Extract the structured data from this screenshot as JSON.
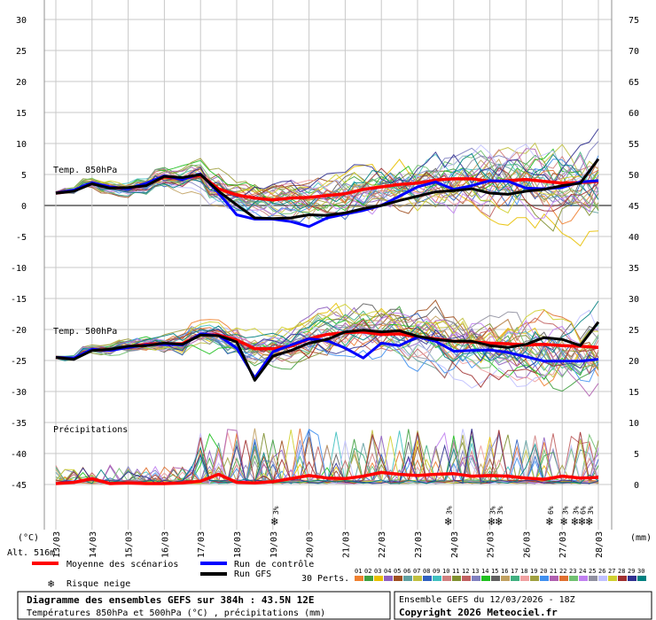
{
  "chart_data": {
    "type": "line",
    "left_axis_label": "(°C)",
    "right_axis_label": "(mm)",
    "altitude_label": "Alt. 516m",
    "y_left_ticks": [
      30,
      25,
      20,
      15,
      10,
      5,
      0,
      -5,
      -10,
      -15,
      -20,
      -25,
      -30,
      -35,
      -40,
      -45
    ],
    "y_right_ticks": [
      75,
      70,
      65,
      60,
      55,
      50,
      45,
      40,
      35,
      30,
      25,
      20,
      15,
      10,
      5,
      0
    ],
    "ylim": [
      -45,
      30
    ],
    "x_dates": [
      "13/03",
      "14/03",
      "15/03",
      "16/03",
      "17/03",
      "18/03",
      "19/03",
      "20/03",
      "21/03",
      "22/03",
      "23/03",
      "24/03",
      "25/03",
      "26/03",
      "27/03",
      "28/03"
    ],
    "section_labels": {
      "t850": "Temp. 850hPa",
      "t500": "Temp. 500hPa",
      "precip": "Précipitations"
    },
    "snow_markers": [
      {
        "day": 6.1,
        "pct": "3%"
      },
      {
        "day": 10.9,
        "pct": "3%"
      },
      {
        "day": 12.1,
        "pct": "3%"
      },
      {
        "day": 12.3,
        "pct": "3%"
      },
      {
        "day": 13.7,
        "pct": "6%"
      },
      {
        "day": 14.1,
        "pct": "3%"
      },
      {
        "day": 14.4,
        "pct": "3%"
      },
      {
        "day": 14.6,
        "pct": "6%"
      },
      {
        "day": 14.8,
        "pct": "3%"
      }
    ],
    "series": [
      {
        "name": "Moyenne des scénarios",
        "group": "t850",
        "x": [
          0,
          0.5,
          1,
          1.5,
          2,
          2.5,
          3,
          3.5,
          4,
          4.5,
          5,
          5.5,
          6,
          6.5,
          7,
          7.5,
          8,
          8.5,
          9,
          9.5,
          10,
          10.5,
          11,
          11.5,
          12,
          12.5,
          13,
          13.5,
          14,
          14.5,
          15
        ],
        "values": [
          2,
          2.4,
          3.6,
          2.9,
          2.8,
          3.3,
          4.6,
          4.3,
          4.9,
          2.7,
          1.7,
          1.2,
          0.9,
          1.2,
          1.3,
          1.6,
          1.9,
          2.6,
          3.0,
          3.4,
          3.6,
          4.1,
          4.3,
          4.3,
          3.9,
          4.0,
          4.2,
          3.9,
          3.6,
          3.7,
          3.9
        ]
      },
      {
        "name": "Run de contrôle",
        "group": "t850",
        "x": [
          0,
          0.5,
          1,
          1.5,
          2,
          2.5,
          3,
          3.5,
          4,
          4.5,
          5,
          5.5,
          6,
          6.5,
          7,
          7.5,
          8,
          8.5,
          9,
          9.5,
          10,
          10.5,
          11,
          11.5,
          12,
          12.5,
          13,
          13.5,
          14,
          14.5,
          15
        ],
        "values": [
          2,
          2.5,
          3.7,
          3.0,
          2.7,
          3.6,
          4.8,
          4.2,
          5.1,
          2.0,
          -1.5,
          -2.2,
          -2.2,
          -2.6,
          -3.4,
          -2.0,
          -1.4,
          -0.8,
          0,
          1.5,
          3.0,
          3.8,
          2.6,
          3.2,
          4.0,
          3.9,
          2.8,
          2.7,
          2.9,
          3.8,
          4.0
        ]
      },
      {
        "name": "Run GFS",
        "group": "t850",
        "x": [
          0,
          0.5,
          1,
          1.5,
          2,
          2.5,
          3,
          3.5,
          4,
          4.5,
          5,
          5.5,
          6,
          6.5,
          7,
          7.5,
          8,
          8.5,
          9,
          9.5,
          10,
          10.5,
          11,
          11.5,
          12,
          12.5,
          13,
          13.5,
          14,
          14.5,
          15
        ],
        "values": [
          2,
          2.3,
          3.5,
          2.8,
          2.9,
          3.2,
          4.7,
          4.5,
          5.0,
          2.3,
          0.1,
          -2.0,
          -2.1,
          -2.0,
          -1.5,
          -1.6,
          -1.2,
          -0.5,
          0,
          0.8,
          1.5,
          2.2,
          2.4,
          2.7,
          2.0,
          1.8,
          2.3,
          2.6,
          3.2,
          3.6,
          7.5
        ]
      },
      {
        "name": "Moyenne des scénarios",
        "group": "t500",
        "x": [
          0,
          0.5,
          1,
          1.5,
          2,
          2.5,
          3,
          3.5,
          4,
          4.5,
          5,
          5.5,
          6,
          6.5,
          7,
          7.5,
          8,
          8.5,
          9,
          9.5,
          10,
          10.5,
          11,
          11.5,
          12,
          12.5,
          13,
          13.5,
          14,
          14.5,
          15
        ],
        "values": [
          -24.5,
          -24.7,
          -23.3,
          -23.3,
          -22.8,
          -22.4,
          -22.3,
          -22.3,
          -20.8,
          -20.9,
          -21.7,
          -23.1,
          -23.1,
          -22.7,
          -21.5,
          -20.8,
          -20.5,
          -20.4,
          -20.8,
          -20.7,
          -21.2,
          -21.5,
          -21.9,
          -22.0,
          -22.2,
          -22.3,
          -22.5,
          -22.4,
          -22.6,
          -22.7,
          -22.9
        ]
      },
      {
        "name": "Run de contrôle",
        "group": "t500",
        "x": [
          0,
          0.5,
          1,
          1.5,
          2,
          2.5,
          3,
          3.5,
          4,
          4.5,
          5,
          5.5,
          6,
          6.5,
          7,
          7.5,
          8,
          8.5,
          9,
          9.5,
          10,
          10.5,
          11,
          11.5,
          12,
          12.5,
          13,
          13.5,
          14,
          14.5,
          15
        ],
        "values": [
          -24.5,
          -24.6,
          -23.2,
          -23.4,
          -22.9,
          -22.5,
          -22.4,
          -22.5,
          -20.7,
          -21.0,
          -23.0,
          -27.8,
          -23.6,
          -22.5,
          -21.5,
          -21.8,
          -23.0,
          -24.6,
          -22.2,
          -22.6,
          -21.2,
          -21.9,
          -23.5,
          -23.4,
          -23.3,
          -23.7,
          -24.4,
          -25.1,
          -25.1,
          -25.1,
          -24.8
        ]
      },
      {
        "name": "Run GFS",
        "group": "t500",
        "x": [
          0,
          0.5,
          1,
          1.5,
          2,
          2.5,
          3,
          3.5,
          4,
          4.5,
          5,
          5.5,
          6,
          6.5,
          7,
          7.5,
          8,
          8.5,
          9,
          9.5,
          10,
          10.5,
          11,
          11.5,
          12,
          12.5,
          13,
          13.5,
          14,
          14.5,
          15
        ],
        "values": [
          -24.5,
          -24.8,
          -23.4,
          -23.2,
          -22.7,
          -22.6,
          -22.2,
          -22.4,
          -20.9,
          -21.0,
          -22.0,
          -28.2,
          -24.3,
          -23.4,
          -22.2,
          -21.6,
          -20.4,
          -20.1,
          -20.4,
          -20.2,
          -21.1,
          -21.6,
          -21.9,
          -21.9,
          -22.6,
          -22.9,
          -22.4,
          -21.3,
          -21.6,
          -22.6,
          -18.8
        ]
      },
      {
        "name": "Moyenne des scénarios",
        "group": "precip",
        "unit": "mm",
        "x": [
          0,
          0.5,
          1,
          1.5,
          2,
          2.5,
          3,
          3.5,
          4,
          4.5,
          5,
          5.5,
          6,
          6.5,
          7,
          7.5,
          8,
          8.5,
          9,
          9.5,
          10,
          10.5,
          11,
          11.5,
          12,
          12.5,
          13,
          13.5,
          14,
          14.5,
          15
        ],
        "values": [
          0,
          0.2,
          0.8,
          0,
          0.1,
          0,
          0,
          0.1,
          0.4,
          1.5,
          0.2,
          0.1,
          0.3,
          0.8,
          1.3,
          0.9,
          0.8,
          1.2,
          1.8,
          1.5,
          1.3,
          1.5,
          1.6,
          1.2,
          1.3,
          1.2,
          0.9,
          0.7,
          1.2,
          0.9,
          1.0
        ]
      }
    ],
    "ensemble_members": 30
  },
  "legend": {
    "mean_label": "Moyenne des scénarios",
    "control_label": "Run de contrôle",
    "gfs_label": "Run GFS",
    "snow_label": "Risque neige",
    "perts_label": "30 Perts.",
    "colors": {
      "mean": "#ff0000",
      "control": "#0000ff",
      "gfs": "#000000",
      "snow": "#4aa8e8"
    },
    "member_numbers": [
      "01",
      "02",
      "03",
      "04",
      "05",
      "06",
      "07",
      "08",
      "09",
      "10",
      "11",
      "12",
      "13",
      "14",
      "15",
      "16",
      "17",
      "18",
      "19",
      "20",
      "21",
      "22",
      "23",
      "24",
      "25",
      "26",
      "27",
      "28",
      "29",
      "30"
    ],
    "member_colors": [
      "#f08030",
      "#40a040",
      "#e8c000",
      "#9060c0",
      "#a05020",
      "#60a0a0",
      "#c0c040",
      "#3060c0",
      "#40c0c0",
      "#d08080",
      "#809030",
      "#c06060",
      "#8080c0",
      "#20c020",
      "#606060",
      "#c0a060",
      "#40b080",
      "#f0a0a0",
      "#a0a040",
      "#4090f0",
      "#b060b0",
      "#e07030",
      "#70c070",
      "#c080f0",
      "#9090a0",
      "#c0c0ff",
      "#d0d030",
      "#a03030",
      "#303090",
      "#008080"
    ]
  },
  "footer": {
    "title_line1": "Diagramme des ensembles GEFS sur 384h : 43.5N 12E",
    "title_line2": "Températures 850hPa et 500hPa (°C) , précipitations (mm)",
    "run_line": "Ensemble GEFS du 12/03/2026 - 18Z",
    "copyright": "Copyright 2026 Meteociel.fr"
  }
}
